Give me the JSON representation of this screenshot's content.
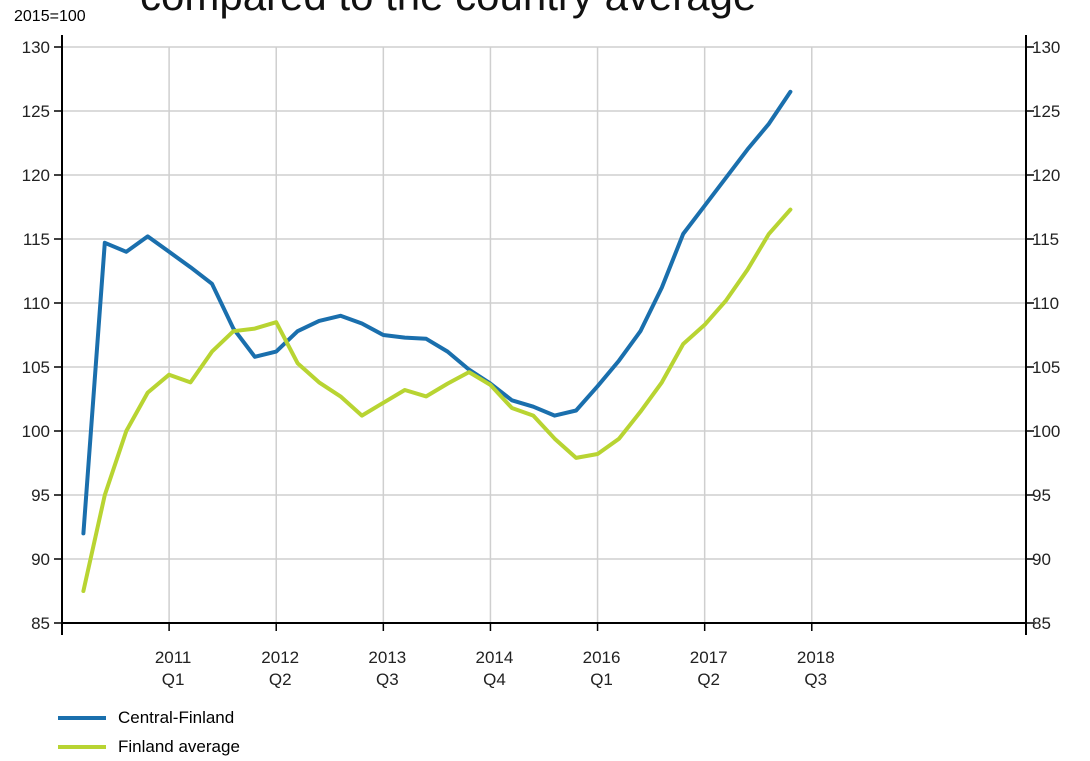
{
  "chart_data": {
    "type": "line",
    "title": "compared to the country average",
    "base_label": "2015=100",
    "ylim": [
      85,
      130
    ],
    "yticks": [
      85,
      90,
      95,
      100,
      105,
      110,
      115,
      120,
      125,
      130
    ],
    "xlim": [
      2010.0,
      2019.0
    ],
    "xticks": [
      {
        "x": 2011,
        "year": "2011",
        "quarter": "Q1"
      },
      {
        "x": 2012,
        "year": "2012",
        "quarter": "Q2"
      },
      {
        "x": 2013,
        "year": "2013",
        "quarter": "Q3"
      },
      {
        "x": 2014,
        "year": "2014",
        "quarter": "Q4"
      },
      {
        "x": 2015,
        "year": "2016",
        "quarter": "Q1"
      },
      {
        "x": 2016,
        "year": "2017",
        "quarter": "Q2"
      },
      {
        "x": 2017,
        "year": "2018",
        "quarter": "Q3"
      }
    ],
    "grid": true,
    "legend_position": "bottom-left",
    "series": [
      {
        "name": "Central-Finland",
        "color": "#1a6fad",
        "points": [
          [
            2010.2,
            92.0
          ],
          [
            2010.4,
            114.7
          ],
          [
            2010.6,
            114.0
          ],
          [
            2010.8,
            115.2
          ],
          [
            2011.0,
            114.0
          ],
          [
            2011.2,
            112.8
          ],
          [
            2011.4,
            111.5
          ],
          [
            2011.6,
            108.0
          ],
          [
            2011.8,
            105.8
          ],
          [
            2012.0,
            106.2
          ],
          [
            2012.2,
            107.8
          ],
          [
            2012.4,
            108.6
          ],
          [
            2012.6,
            109.0
          ],
          [
            2012.8,
            108.4
          ],
          [
            2013.0,
            107.5
          ],
          [
            2013.2,
            107.3
          ],
          [
            2013.4,
            107.2
          ],
          [
            2013.6,
            106.2
          ],
          [
            2013.8,
            104.8
          ],
          [
            2014.0,
            103.7
          ],
          [
            2014.2,
            102.4
          ],
          [
            2014.4,
            101.9
          ],
          [
            2014.6,
            101.2
          ],
          [
            2014.8,
            101.6
          ],
          [
            2015.0,
            103.5
          ],
          [
            2015.2,
            105.5
          ],
          [
            2015.4,
            107.8
          ],
          [
            2015.6,
            111.2
          ],
          [
            2015.8,
            115.4
          ],
          [
            2016.0,
            117.6
          ],
          [
            2016.2,
            119.8
          ],
          [
            2016.4,
            122.0
          ],
          [
            2016.6,
            124.0
          ],
          [
            2016.8,
            126.5
          ]
        ]
      },
      {
        "name": "Finland average",
        "color": "#b8d432",
        "points": [
          [
            2010.2,
            87.5
          ],
          [
            2010.4,
            95.0
          ],
          [
            2010.6,
            100.0
          ],
          [
            2010.8,
            103.0
          ],
          [
            2011.0,
            104.4
          ],
          [
            2011.2,
            103.8
          ],
          [
            2011.4,
            106.2
          ],
          [
            2011.6,
            107.8
          ],
          [
            2011.8,
            108.0
          ],
          [
            2012.0,
            108.5
          ],
          [
            2012.2,
            105.3
          ],
          [
            2012.4,
            103.8
          ],
          [
            2012.6,
            102.7
          ],
          [
            2012.8,
            101.2
          ],
          [
            2013.0,
            102.2
          ],
          [
            2013.2,
            103.2
          ],
          [
            2013.4,
            102.7
          ],
          [
            2013.6,
            103.7
          ],
          [
            2013.8,
            104.6
          ],
          [
            2014.0,
            103.6
          ],
          [
            2014.2,
            101.8
          ],
          [
            2014.4,
            101.2
          ],
          [
            2014.6,
            99.4
          ],
          [
            2014.8,
            97.9
          ],
          [
            2015.0,
            98.2
          ],
          [
            2015.2,
            99.4
          ],
          [
            2015.4,
            101.5
          ],
          [
            2015.6,
            103.8
          ],
          [
            2015.8,
            106.8
          ],
          [
            2016.0,
            108.3
          ],
          [
            2016.2,
            110.2
          ],
          [
            2016.4,
            112.6
          ],
          [
            2016.6,
            115.4
          ],
          [
            2016.8,
            117.3
          ]
        ]
      }
    ]
  }
}
